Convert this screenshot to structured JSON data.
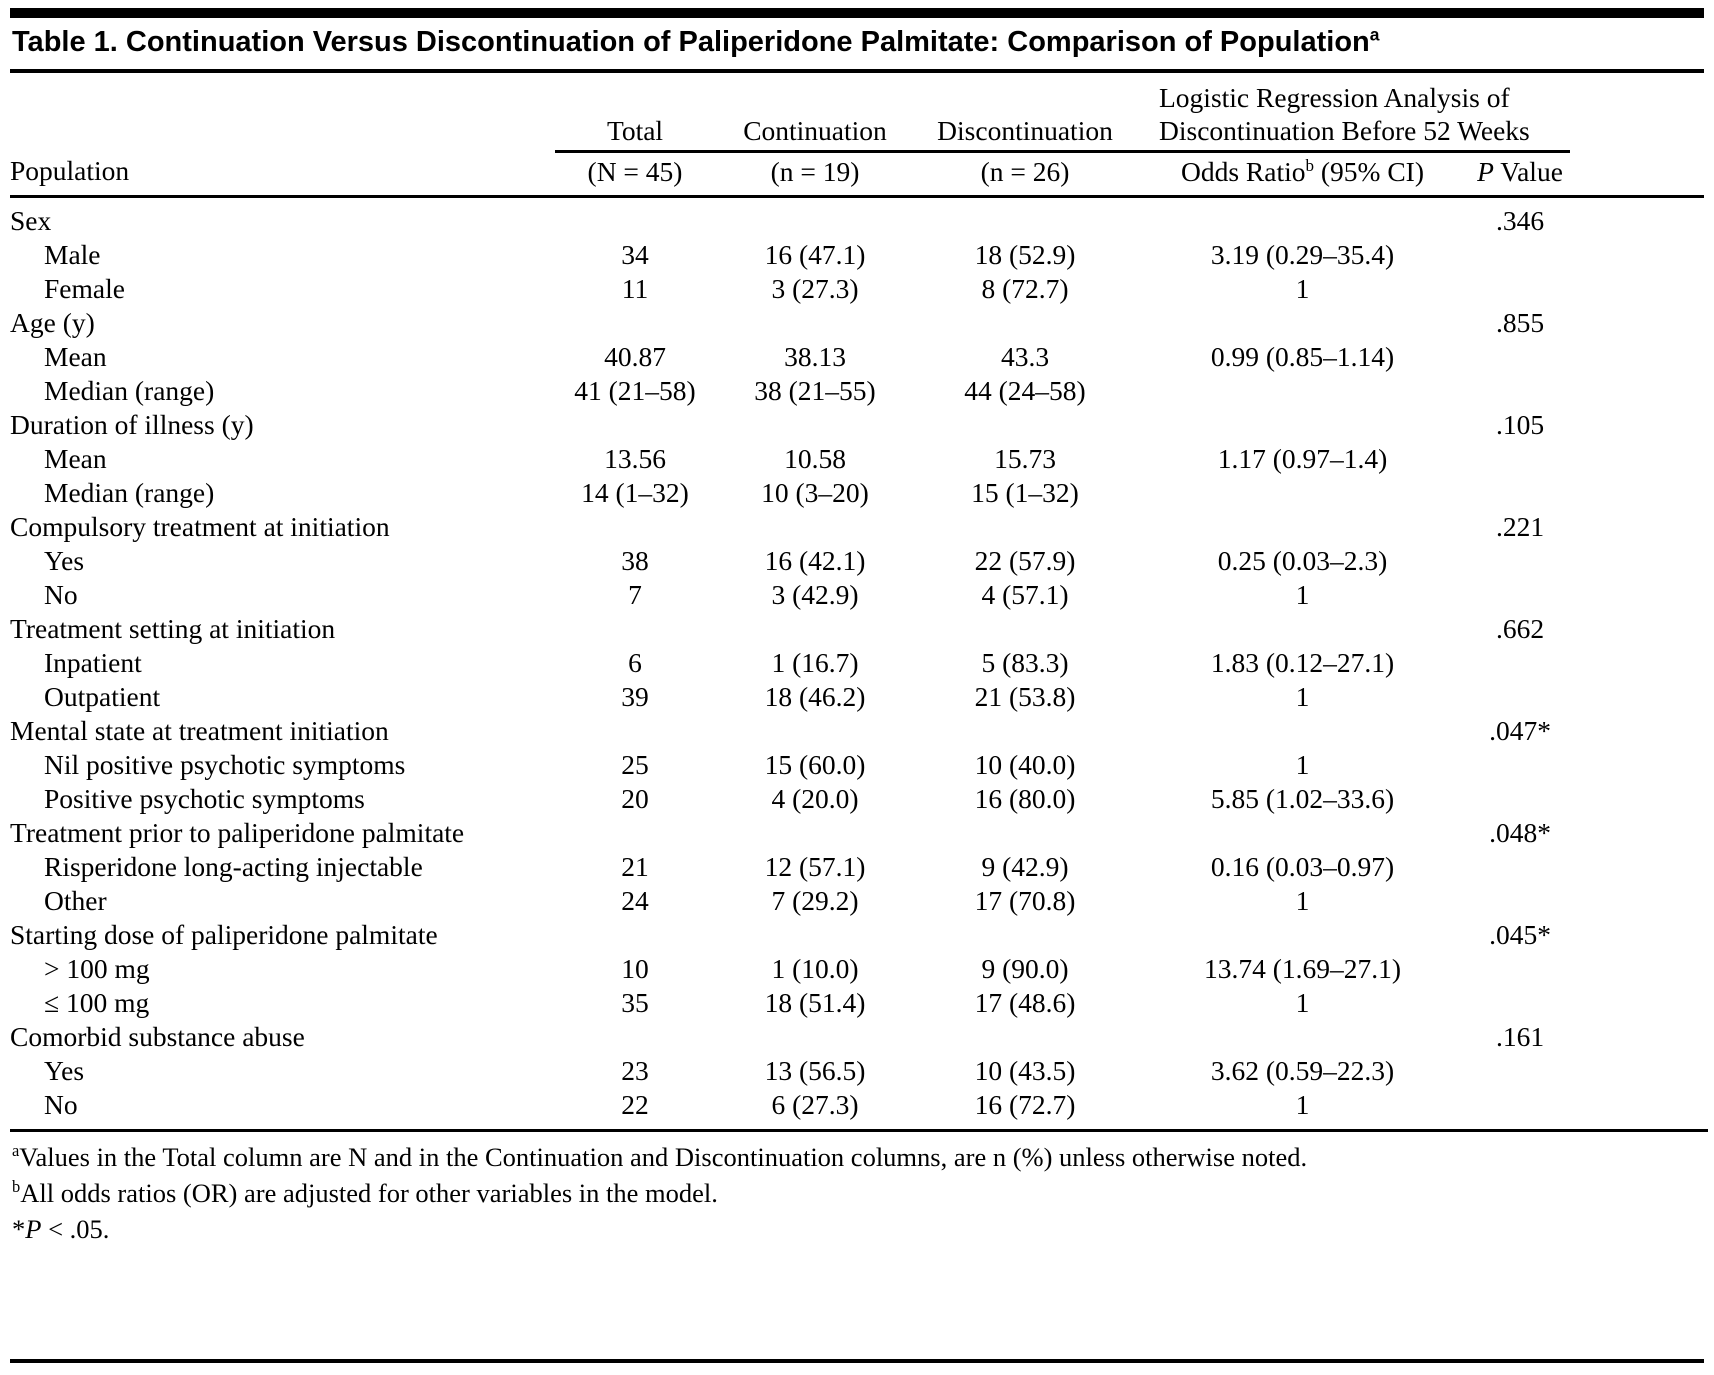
{
  "title": {
    "text": "Table 1. Continuation Versus Discontinuation of Paliperidone Palmitate: Comparison of Population",
    "superscript": "a"
  },
  "header": {
    "population": "Population",
    "groups": [
      {
        "label": "Total",
        "sub": "(N = 45)"
      },
      {
        "label": "Continuation",
        "sub": "(n = 19)"
      },
      {
        "label": "Discontinuation",
        "sub": "(n = 26)"
      }
    ],
    "regression": {
      "line1": "Logistic Regression Analysis of",
      "line2": "Discontinuation Before 52 Weeks"
    },
    "odds_ratio": {
      "pre": "Odds Ratio",
      "sup": "b",
      "post": " (95% CI)"
    },
    "p_value": {
      "italic": "P",
      "rest": " Value"
    }
  },
  "table": {
    "rows": [
      {
        "label": "Sex",
        "indent": false,
        "total": "",
        "cont": "",
        "disc": "",
        "or": "",
        "p": ".346"
      },
      {
        "label": "Male",
        "indent": true,
        "total": "34",
        "cont": "16 (47.1)",
        "disc": "18 (52.9)",
        "or": "3.19 (0.29–35.4)",
        "p": ""
      },
      {
        "label": "Female",
        "indent": true,
        "total": "11",
        "cont": "3 (27.3)",
        "disc": "8 (72.7)",
        "or": "1",
        "p": ""
      },
      {
        "label": "Age (y)",
        "indent": false,
        "total": "",
        "cont": "",
        "disc": "",
        "or": "",
        "p": ".855"
      },
      {
        "label": "Mean",
        "indent": true,
        "total": "40.87",
        "cont": "38.13",
        "disc": "43.3",
        "or": "0.99 (0.85–1.14)",
        "p": ""
      },
      {
        "label": "Median (range)",
        "indent": true,
        "total": "41 (21–58)",
        "cont": "38 (21–55)",
        "disc": "44 (24–58)",
        "or": "",
        "p": ""
      },
      {
        "label": "Duration of illness (y)",
        "indent": false,
        "total": "",
        "cont": "",
        "disc": "",
        "or": "",
        "p": ".105"
      },
      {
        "label": "Mean",
        "indent": true,
        "total": "13.56",
        "cont": "10.58",
        "disc": "15.73",
        "or": "1.17 (0.97–1.4)",
        "p": ""
      },
      {
        "label": "Median (range)",
        "indent": true,
        "total": "14 (1–32)",
        "cont": "10 (3–20)",
        "disc": "15 (1–32)",
        "or": "",
        "p": ""
      },
      {
        "label": "Compulsory treatment at initiation",
        "indent": false,
        "total": "",
        "cont": "",
        "disc": "",
        "or": "",
        "p": ".221"
      },
      {
        "label": "Yes",
        "indent": true,
        "total": "38",
        "cont": "16 (42.1)",
        "disc": "22 (57.9)",
        "or": "0.25 (0.03–2.3)",
        "p": ""
      },
      {
        "label": "No",
        "indent": true,
        "total": "7",
        "cont": "3 (42.9)",
        "disc": "4 (57.1)",
        "or": "1",
        "p": ""
      },
      {
        "label": "Treatment setting at initiation",
        "indent": false,
        "total": "",
        "cont": "",
        "disc": "",
        "or": "",
        "p": ".662"
      },
      {
        "label": "Inpatient",
        "indent": true,
        "total": "6",
        "cont": "1 (16.7)",
        "disc": "5 (83.3)",
        "or": "1.83 (0.12–27.1)",
        "p": ""
      },
      {
        "label": "Outpatient",
        "indent": true,
        "total": "39",
        "cont": "18 (46.2)",
        "disc": "21 (53.8)",
        "or": "1",
        "p": ""
      },
      {
        "label": "Mental state at treatment initiation",
        "indent": false,
        "total": "",
        "cont": "",
        "disc": "",
        "or": "",
        "p": ".047*"
      },
      {
        "label": "Nil positive psychotic symptoms",
        "indent": true,
        "total": "25",
        "cont": "15 (60.0)",
        "disc": "10 (40.0)",
        "or": "1",
        "p": ""
      },
      {
        "label": "Positive psychotic symptoms",
        "indent": true,
        "total": "20",
        "cont": "4 (20.0)",
        "disc": "16 (80.0)",
        "or": "5.85 (1.02–33.6)",
        "p": ""
      },
      {
        "label": "Treatment prior to paliperidone palmitate",
        "indent": false,
        "total": "",
        "cont": "",
        "disc": "",
        "or": "",
        "p": ".048*"
      },
      {
        "label": "Risperidone long-acting injectable",
        "indent": true,
        "total": "21",
        "cont": "12 (57.1)",
        "disc": "9 (42.9)",
        "or": "0.16 (0.03–0.97)",
        "p": ""
      },
      {
        "label": "Other",
        "indent": true,
        "total": "24",
        "cont": "7 (29.2)",
        "disc": "17 (70.8)",
        "or": "1",
        "p": ""
      },
      {
        "label": "Starting dose of paliperidone palmitate",
        "indent": false,
        "total": "",
        "cont": "",
        "disc": "",
        "or": "",
        "p": ".045*"
      },
      {
        "label": "> 100 mg",
        "indent": true,
        "total": "10",
        "cont": "1 (10.0)",
        "disc": "9 (90.0)",
        "or": "13.74 (1.69–27.1)",
        "p": ""
      },
      {
        "label": "≤ 100 mg",
        "indent": true,
        "total": "35",
        "cont": "18 (51.4)",
        "disc": "17 (48.6)",
        "or": "1",
        "p": ""
      },
      {
        "label": "Comorbid substance abuse",
        "indent": false,
        "total": "",
        "cont": "",
        "disc": "",
        "or": "",
        "p": ".161"
      },
      {
        "label": "Yes",
        "indent": true,
        "total": "23",
        "cont": "13 (56.5)",
        "disc": "10 (43.5)",
        "or": "3.62 (0.59–22.3)",
        "p": ""
      },
      {
        "label": "No",
        "indent": true,
        "total": "22",
        "cont": "6 (27.3)",
        "disc": "16 (72.7)",
        "or": "1",
        "p": ""
      }
    ]
  },
  "footnotes": [
    {
      "marker": "a",
      "sup": true,
      "italic_lead": "",
      "text": "Values in the Total column are N and in the Continuation and Discontinuation columns, are n (%) unless otherwise noted."
    },
    {
      "marker": "b",
      "sup": true,
      "italic_lead": "",
      "text": "All odds ratios (OR) are adjusted for other variables in the model."
    },
    {
      "marker": "*",
      "sup": false,
      "italic_lead": "P",
      "text": " < .05."
    }
  ]
}
